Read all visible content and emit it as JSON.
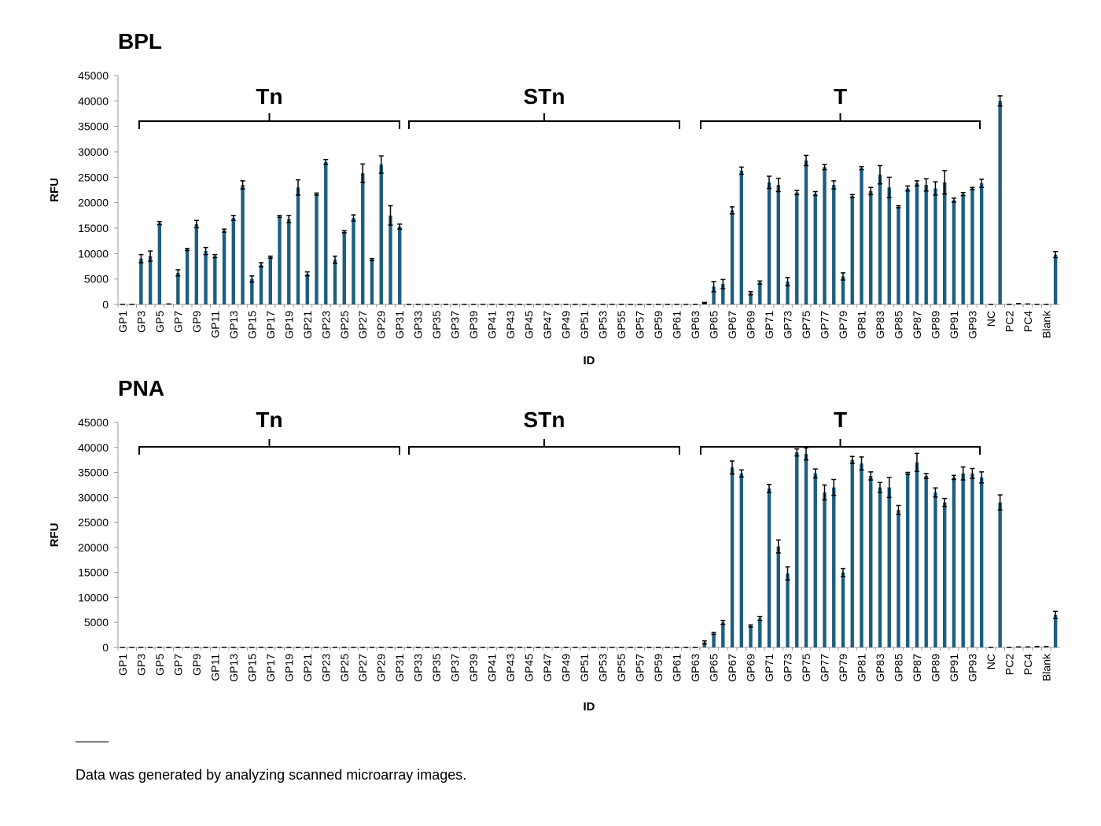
{
  "chart_data": [
    {
      "type": "bar",
      "title": "BPL",
      "xlabel": "ID",
      "ylabel": "RFU",
      "color": "#1d5e80",
      "groups": [
        "Tn",
        "STn",
        "T"
      ],
      "categories": [
        "GP1",
        null,
        "GP3",
        null,
        "GP5",
        null,
        "GP7",
        null,
        "GP9",
        null,
        "GP11",
        null,
        "GP13",
        null,
        "GP15",
        null,
        "GP17",
        null,
        "GP19",
        null,
        "GP21",
        null,
        "GP23",
        null,
        "GP25",
        null,
        "GP27",
        null,
        "GP29",
        null,
        "GP31",
        null,
        "GP33",
        null,
        "GP35",
        null,
        "GP37",
        null,
        "GP39",
        null,
        "GP41",
        null,
        "GP43",
        null,
        "GP45",
        null,
        "GP47",
        null,
        "GP49",
        null,
        "GP51",
        null,
        "GP53",
        null,
        "GP55",
        null,
        "GP57",
        null,
        "GP59",
        null,
        "GP61",
        null,
        "GP63",
        null,
        "GP65",
        null,
        "GP67",
        null,
        "GP69",
        null,
        "GP71",
        null,
        "GP73",
        null,
        "GP75",
        null,
        "GP77",
        null,
        "GP79",
        null,
        "GP81",
        null,
        "GP83",
        null,
        "GP85",
        null,
        "GP87",
        null,
        "GP89",
        null,
        "GP91",
        null,
        "GP93",
        null,
        "NC",
        null,
        "PC2",
        null,
        "PC4",
        null,
        "Blank",
        null
      ],
      "values": [
        0,
        0,
        9000,
        9500,
        16000,
        100,
        6200,
        10800,
        15800,
        10500,
        9500,
        14500,
        17000,
        23500,
        5000,
        7800,
        9300,
        17300,
        16800,
        23000,
        6000,
        21700,
        28000,
        8800,
        14300,
        17000,
        25800,
        8800,
        27500,
        17500,
        15300,
        0,
        0,
        0,
        0,
        0,
        0,
        0,
        0,
        0,
        0,
        0,
        0,
        0,
        0,
        0,
        0,
        0,
        0,
        0,
        0,
        0,
        0,
        0,
        0,
        0,
        0,
        0,
        0,
        0,
        0,
        0,
        0,
        300,
        3500,
        4000,
        18500,
        26300,
        2200,
        4300,
        24000,
        23500,
        4500,
        22000,
        28300,
        21800,
        27000,
        23500,
        5500,
        21300,
        26800,
        22300,
        25500,
        23000,
        19200,
        22800,
        23800,
        23500,
        22800,
        24000,
        20500,
        21700,
        22800,
        23800,
        0,
        40000,
        0,
        200,
        100,
        0,
        0,
        9800
      ],
      "errors": [
        0,
        0,
        800,
        1000,
        300,
        0,
        600,
        200,
        700,
        700,
        300,
        300,
        500,
        800,
        600,
        400,
        200,
        200,
        700,
        1500,
        400,
        200,
        500,
        700,
        200,
        600,
        1800,
        200,
        1700,
        1900,
        500,
        0,
        0,
        0,
        0,
        0,
        0,
        0,
        0,
        0,
        0,
        0,
        0,
        0,
        0,
        0,
        0,
        0,
        0,
        0,
        0,
        0,
        0,
        0,
        0,
        0,
        0,
        0,
        0,
        0,
        0,
        0,
        0,
        100,
        1000,
        900,
        700,
        700,
        300,
        300,
        1200,
        1300,
        800,
        400,
        1000,
        400,
        500,
        800,
        700,
        300,
        300,
        700,
        1800,
        2000,
        200,
        500,
        500,
        1200,
        1300,
        2300,
        400,
        300,
        200,
        800,
        0,
        1000,
        0,
        0,
        0,
        0,
        0,
        600
      ],
      "ylim": [
        0,
        45000
      ],
      "yticks": [
        0,
        5000,
        10000,
        15000,
        20000,
        25000,
        30000,
        35000,
        40000,
        45000
      ]
    },
    {
      "type": "bar",
      "title": "PNA",
      "xlabel": "ID",
      "ylabel": "RFU",
      "color": "#1d5e80",
      "groups": [
        "Tn",
        "STn",
        "T"
      ],
      "categories": [
        "GP1",
        null,
        "GP3",
        null,
        "GP5",
        null,
        "GP7",
        null,
        "GP9",
        null,
        "GP11",
        null,
        "GP13",
        null,
        "GP15",
        null,
        "GP17",
        null,
        "GP19",
        null,
        "GP21",
        null,
        "GP23",
        null,
        "GP25",
        null,
        "GP27",
        null,
        "GP29",
        null,
        "GP31",
        null,
        "GP33",
        null,
        "GP35",
        null,
        "GP37",
        null,
        "GP39",
        null,
        "GP41",
        null,
        "GP43",
        null,
        "GP45",
        null,
        "GP47",
        null,
        "GP49",
        null,
        "GP51",
        null,
        "GP53",
        null,
        "GP55",
        null,
        "GP57",
        null,
        "GP59",
        null,
        "GP61",
        null,
        "GP63",
        null,
        "GP65",
        null,
        "GP67",
        null,
        "GP69",
        null,
        "GP71",
        null,
        "GP73",
        null,
        "GP75",
        null,
        "GP77",
        null,
        "GP79",
        null,
        "GP81",
        null,
        "GP83",
        null,
        "GP85",
        null,
        "GP87",
        null,
        "GP89",
        null,
        "GP91",
        null,
        "GP93",
        null,
        "NC",
        null,
        "PC2",
        null,
        "PC4",
        null,
        "Blank",
        null
      ],
      "values": [
        0,
        0,
        0,
        0,
        0,
        0,
        0,
        0,
        0,
        0,
        0,
        0,
        0,
        0,
        0,
        0,
        0,
        0,
        0,
        0,
        0,
        0,
        0,
        0,
        0,
        0,
        0,
        0,
        0,
        0,
        0,
        0,
        0,
        0,
        0,
        0,
        0,
        0,
        0,
        0,
        0,
        0,
        0,
        0,
        0,
        0,
        0,
        0,
        0,
        0,
        0,
        0,
        0,
        0,
        0,
        0,
        0,
        0,
        0,
        0,
        0,
        0,
        0,
        1000,
        2800,
        5000,
        36000,
        34800,
        4300,
        5800,
        31800,
        20200,
        14800,
        39000,
        38700,
        34800,
        31000,
        32000,
        15000,
        37500,
        36800,
        34300,
        32000,
        32000,
        27500,
        34800,
        37000,
        34300,
        31000,
        29000,
        34000,
        34800,
        34800,
        34000,
        0,
        29000,
        0,
        100,
        100,
        200,
        200,
        6500
      ],
      "errors": [
        0,
        0,
        0,
        0,
        0,
        0,
        0,
        0,
        0,
        0,
        0,
        0,
        0,
        0,
        0,
        0,
        0,
        0,
        0,
        0,
        0,
        0,
        0,
        0,
        0,
        0,
        0,
        0,
        0,
        0,
        0,
        0,
        0,
        0,
        0,
        0,
        0,
        0,
        0,
        0,
        0,
        0,
        0,
        0,
        0,
        0,
        0,
        0,
        0,
        0,
        0,
        0,
        0,
        0,
        0,
        0,
        0,
        0,
        0,
        0,
        0,
        0,
        0,
        300,
        200,
        400,
        1300,
        700,
        200,
        400,
        800,
        1300,
        1300,
        700,
        1200,
        900,
        1500,
        1600,
        800,
        700,
        1300,
        800,
        1000,
        2000,
        900,
        200,
        1800,
        500,
        900,
        800,
        400,
        1300,
        1000,
        1100,
        0,
        1500,
        0,
        0,
        0,
        0,
        0,
        700
      ],
      "ylim": [
        0,
        45000
      ],
      "yticks": [
        0,
        5000,
        10000,
        15000,
        20000,
        25000,
        30000,
        35000,
        40000,
        45000
      ]
    }
  ],
  "footnote": "Data was generated by analyzing scanned microarray images."
}
